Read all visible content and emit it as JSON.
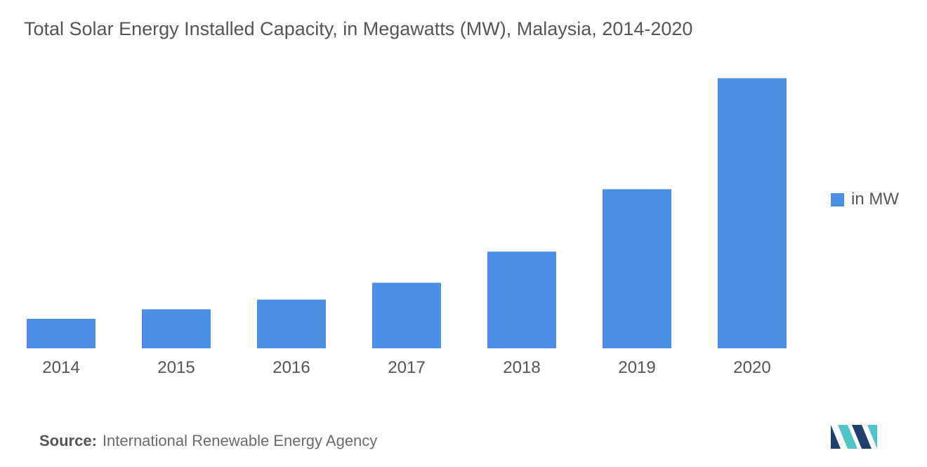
{
  "header": {
    "title": "Total Solar Energy Installed Capacity, in Megawatts (MW), Malaysia, 2014-2020"
  },
  "legend": {
    "label": "in MW"
  },
  "footer": {
    "source_label": "Source:",
    "source_text": "International Renewable Energy Agency",
    "logo_icon": "mordor-intelligence-logo"
  },
  "colors": {
    "bar": "#4A8FE2",
    "logo_dark": "#1F3F6E",
    "logo_light": "#4FC3C7"
  },
  "chart_data": {
    "type": "bar",
    "title": "Total Solar Energy Installed Capacity, in Megawatts (MW), Malaysia, 2014-2020",
    "xlabel": "",
    "ylabel": "",
    "categories": [
      "2014",
      "2015",
      "2016",
      "2017",
      "2018",
      "2019",
      "2020"
    ],
    "series": [
      {
        "name": "in MW",
        "values": [
          269,
          356,
          444,
          598,
          882,
          1451,
          2463
        ]
      }
    ],
    "ylim": [
      0,
      2600
    ],
    "grid": false,
    "legend_position": "right"
  }
}
